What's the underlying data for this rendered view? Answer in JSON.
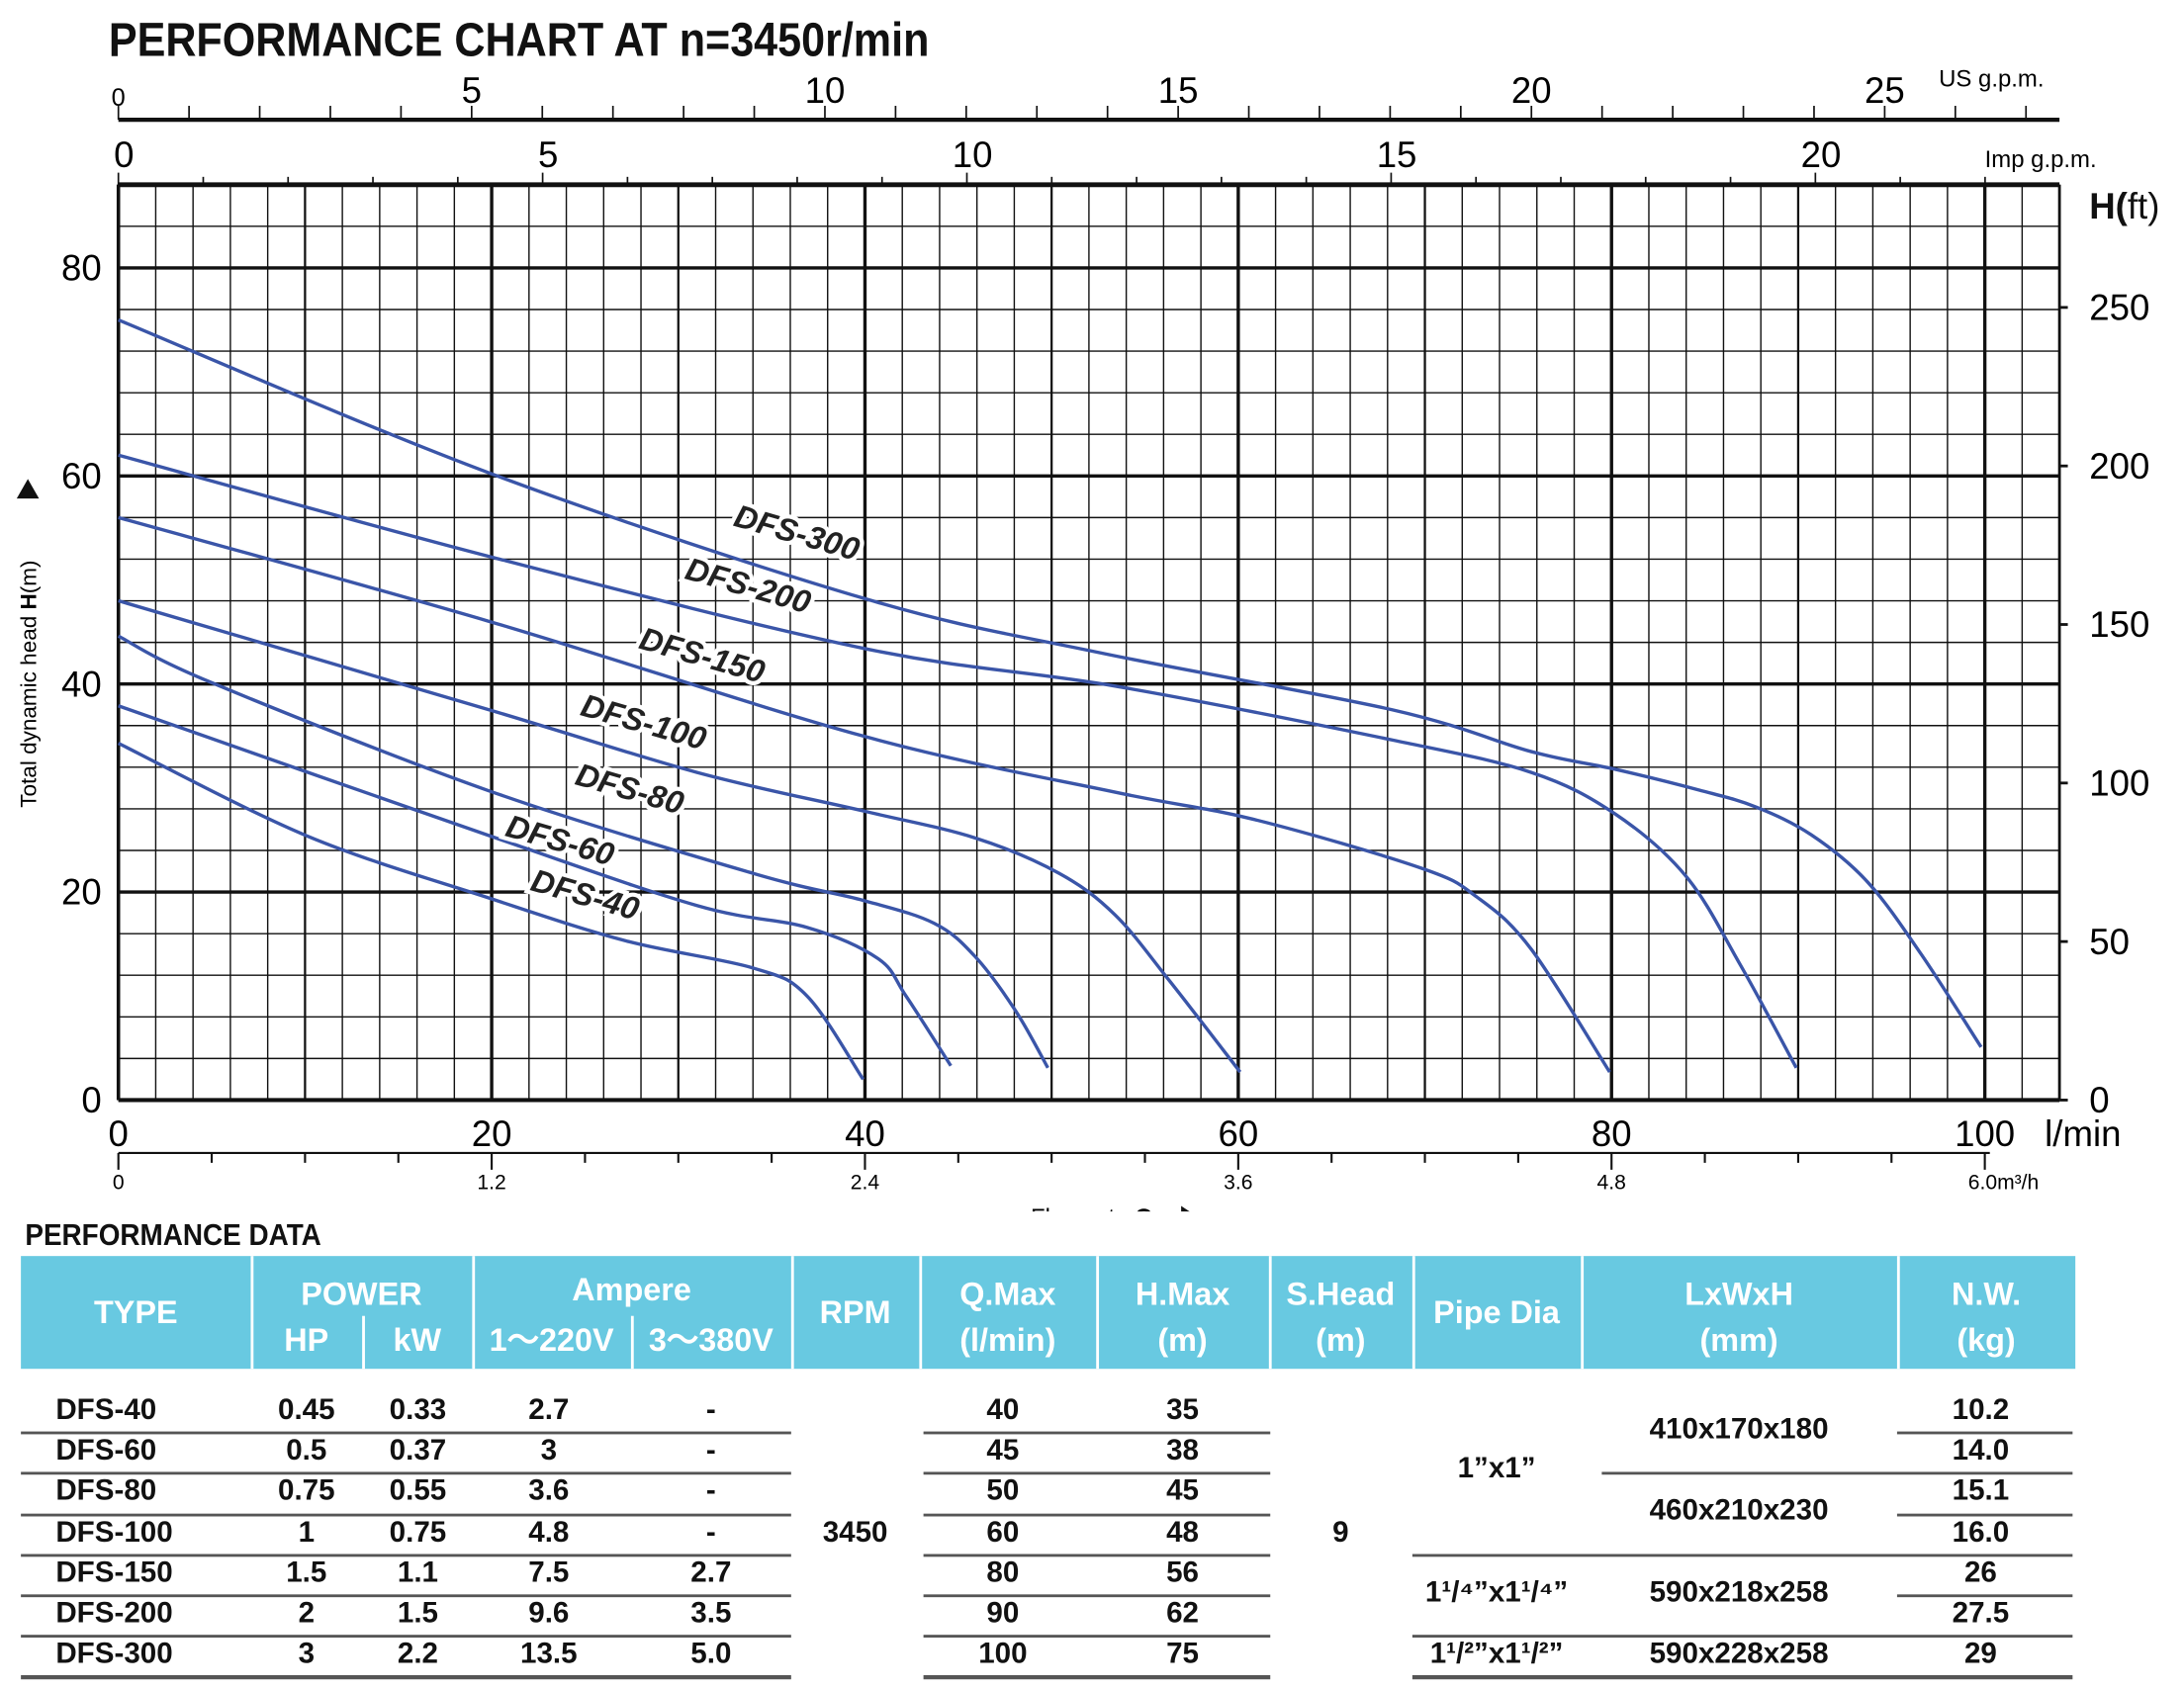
{
  "title": "PERFORMANCE CHART AT n=3450r/min",
  "chart_data": {
    "type": "line",
    "title": "PERFORMANCE CHART AT n=3450r/min",
    "xlabel": "Flow rate Q",
    "ylabel": "Total dynamic head H(m)",
    "x_unit": "l/min",
    "xlim": [
      0,
      104
    ],
    "ylim": [
      0,
      88
    ],
    "grid": true,
    "x_ticks": [
      0,
      20,
      40,
      60,
      80,
      100
    ],
    "y_ticks": [
      0,
      20,
      40,
      60,
      80
    ],
    "secondary_axes": {
      "us_gpm": {
        "label": "US g.p.m.",
        "ticks": [
          0,
          5,
          10,
          15,
          20,
          25
        ]
      },
      "imp_gpm": {
        "label": "Imp g.p.m.",
        "ticks": [
          0,
          5,
          10,
          15,
          20
        ]
      },
      "m3h": {
        "label": "6.0m³/h",
        "ticks": [
          "0",
          "1.2",
          "2.4",
          "3.6",
          "4.8"
        ]
      },
      "h_ft": {
        "label": "H(ft)",
        "ticks": [
          0,
          50,
          100,
          150,
          200,
          250
        ]
      }
    },
    "series": [
      {
        "name": "DFS-300",
        "points": [
          [
            0,
            75
          ],
          [
            20,
            60.2
          ],
          [
            40,
            48.2
          ],
          [
            52.6,
            43
          ],
          [
            68.3,
            37.5
          ],
          [
            75.7,
            33.5
          ],
          [
            80.2,
            31.8
          ],
          [
            84.7,
            29.8
          ],
          [
            87.7,
            28.2
          ],
          [
            90.7,
            25.5
          ],
          [
            93.7,
            21
          ],
          [
            96.6,
            14
          ],
          [
            99.8,
            5.1
          ]
        ]
      },
      {
        "name": "DFS-200",
        "points": [
          [
            0,
            62
          ],
          [
            20,
            52.2
          ],
          [
            40,
            43.4
          ],
          [
            53.4,
            39.8
          ],
          [
            68.3,
            34.6
          ],
          [
            75.7,
            31.5
          ],
          [
            80.2,
            27.5
          ],
          [
            84,
            21.5
          ],
          [
            86.9,
            13
          ],
          [
            89.9,
            3.1
          ]
        ]
      },
      {
        "name": "DFS-150",
        "points": [
          [
            0,
            56
          ],
          [
            19.9,
            46
          ],
          [
            39.9,
            35
          ],
          [
            53.4,
            29.6
          ],
          [
            60.8,
            27
          ],
          [
            69.8,
            22.3
          ],
          [
            72.8,
            19.5
          ],
          [
            75.7,
            14.5
          ],
          [
            79.9,
            2.7
          ]
        ]
      },
      {
        "name": "DFS-100",
        "points": [
          [
            0,
            48
          ],
          [
            19.9,
            37.5
          ],
          [
            31,
            31.5
          ],
          [
            39.9,
            27.8
          ],
          [
            45.9,
            25.2
          ],
          [
            50.4,
            21.8
          ],
          [
            53.4,
            17.8
          ],
          [
            56.3,
            11.5
          ],
          [
            60.1,
            2.7
          ]
        ]
      },
      {
        "name": "DFS-80",
        "points": [
          [
            0,
            44.6
          ],
          [
            4.9,
            40.2
          ],
          [
            19.9,
            29.7
          ],
          [
            34,
            21.8
          ],
          [
            39.9,
            19.2
          ],
          [
            43.7,
            17
          ],
          [
            45.9,
            13.8
          ],
          [
            48.1,
            8.5
          ],
          [
            49.8,
            3.1
          ]
        ]
      },
      {
        "name": "DFS-60",
        "points": [
          [
            0,
            37.9
          ],
          [
            19.9,
            25.4
          ],
          [
            31,
            18.7
          ],
          [
            36.9,
            16.6
          ],
          [
            40.7,
            13.6
          ],
          [
            42.2,
            10
          ],
          [
            44.6,
            3.3
          ]
        ]
      },
      {
        "name": "DFS-40",
        "points": [
          [
            0,
            34.3
          ],
          [
            10.1,
            25.4
          ],
          [
            19.9,
            19.4
          ],
          [
            27.2,
            15.3
          ],
          [
            34,
            12.7
          ],
          [
            36.9,
            10
          ],
          [
            39.9,
            2
          ]
        ]
      }
    ],
    "line_color": "#3a55a8"
  },
  "flow_label": "Flow rate ",
  "flow_q": "Q",
  "lmin_label": "l/min",
  "ylabel_pre": "Total dynamic head ",
  "ylabel_h": "H",
  "ylabel_post": "(m)",
  "table": {
    "title": "PERFORMANCE DATA",
    "header_color": "#68C9E1",
    "headers": {
      "type": "TYPE",
      "power": "POWER",
      "hp": "HP",
      "kw": "kW",
      "ampere": "Ampere",
      "a220": "1～220V",
      "a380": "3～380V",
      "rpm": "RPM",
      "qmax": "Q.Max",
      "qmax_u": "(l/min)",
      "hmax": "H.Max",
      "hmax_u": "(m)",
      "shead": "S.Head",
      "shead_u": "(m)",
      "pipe": "Pipe Dia",
      "dims": "LxWxH",
      "dims_u": "(mm)",
      "nw": "N.W.",
      "nw_u": "(kg)"
    },
    "rows": [
      {
        "type": "DFS-40",
        "hp": "0.45",
        "kw": "0.33",
        "a220": "2.7",
        "a380": "-",
        "qmax": "40",
        "hmax": "35",
        "nw": "10.2"
      },
      {
        "type": "DFS-60",
        "hp": "0.5",
        "kw": "0.37",
        "a220": "3",
        "a380": "-",
        "qmax": "45",
        "hmax": "38",
        "nw": "14.0"
      },
      {
        "type": "DFS-80",
        "hp": "0.75",
        "kw": "0.55",
        "a220": "3.6",
        "a380": "-",
        "qmax": "50",
        "hmax": "45",
        "nw": "15.1"
      },
      {
        "type": "DFS-100",
        "hp": "1",
        "kw": "0.75",
        "a220": "4.8",
        "a380": "-",
        "qmax": "60",
        "hmax": "48",
        "nw": "16.0"
      },
      {
        "type": "DFS-150",
        "hp": "1.5",
        "kw": "1.1",
        "a220": "7.5",
        "a380": "2.7",
        "qmax": "80",
        "hmax": "56",
        "nw": "26"
      },
      {
        "type": "DFS-200",
        "hp": "2",
        "kw": "1.5",
        "a220": "9.6",
        "a380": "3.5",
        "qmax": "90",
        "hmax": "62",
        "nw": "27.5"
      },
      {
        "type": "DFS-300",
        "hp": "3",
        "kw": "2.2",
        "a220": "13.5",
        "a380": "5.0",
        "qmax": "100",
        "hmax": "75",
        "nw": "29"
      }
    ],
    "rpm": "3450",
    "shead": "9",
    "pipe": [
      "1”x1”",
      "1¹/⁴”x1¹/⁴”",
      "1¹/²”x1¹/²”"
    ],
    "dims": [
      "410x170x180",
      "460x210x230",
      "590x218x258",
      "590x228x258"
    ]
  }
}
